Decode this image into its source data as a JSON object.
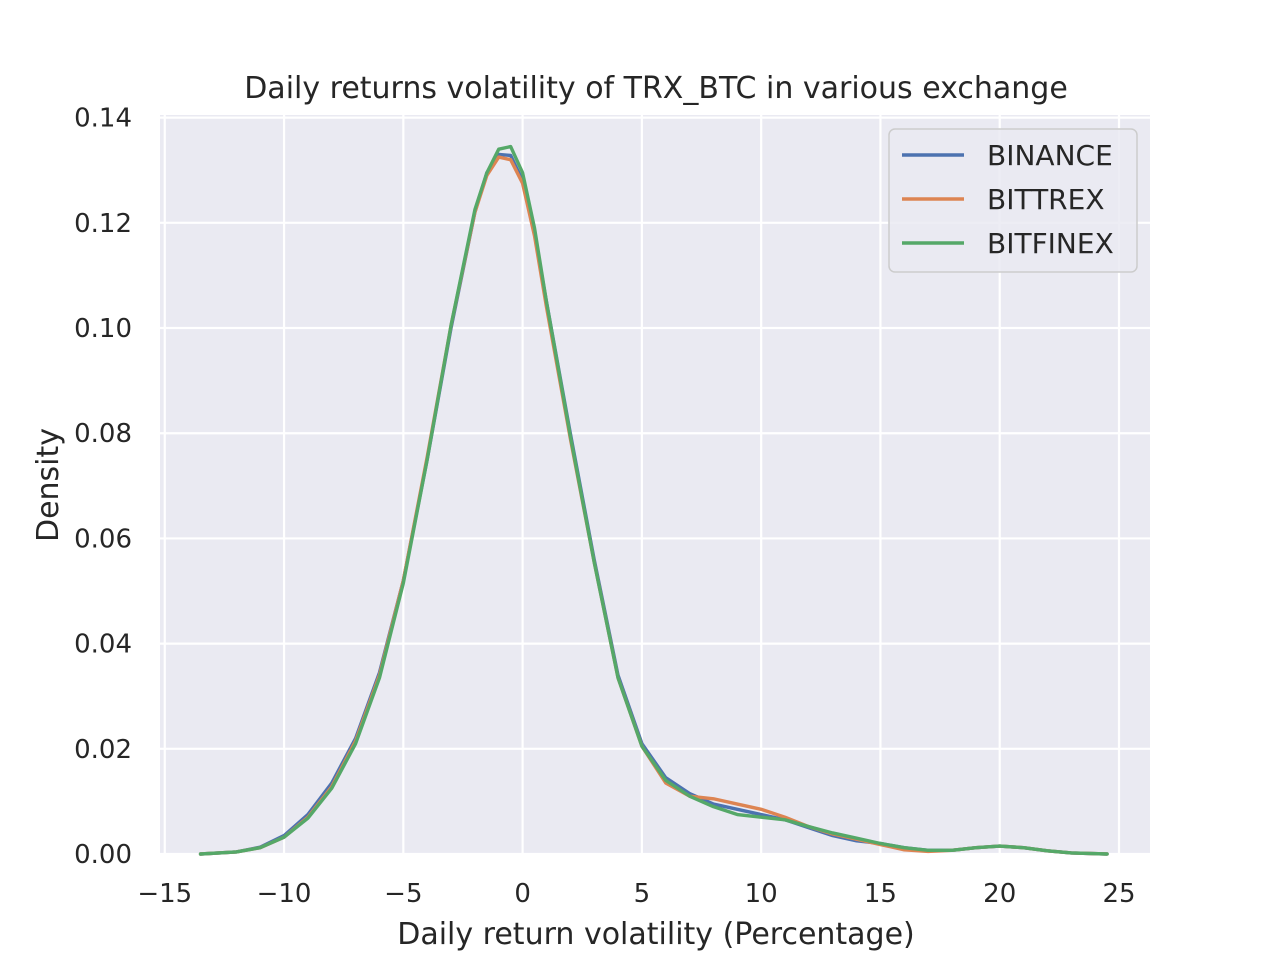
{
  "chart_data": {
    "type": "line",
    "title": "Daily returns volatility of TRX_BTC in various exchange",
    "xlabel": "Daily return volatility (Percentage)",
    "ylabel": "Density",
    "xlim": [
      -15.2,
      26.3
    ],
    "ylim": [
      0,
      0.1405
    ],
    "x_ticks": [
      -15,
      -10,
      -5,
      0,
      5,
      10,
      15,
      20,
      25
    ],
    "x_tick_labels": [
      "−15",
      "−10",
      "−5",
      "0",
      "5",
      "10",
      "15",
      "20",
      "25"
    ],
    "y_ticks": [
      0,
      0.02,
      0.04,
      0.06,
      0.08,
      0.1,
      0.12,
      0.14
    ],
    "y_tick_labels": [
      "0.00",
      "0.02",
      "0.04",
      "0.06",
      "0.08",
      "0.10",
      "0.12",
      "0.14"
    ],
    "grid": true,
    "legend_position": "top-right",
    "series": [
      {
        "name": "BINANCE",
        "color": "#4c72b0",
        "x": [
          -13.5,
          -12,
          -11,
          -10,
          -9,
          -8,
          -7,
          -6,
          -5,
          -4,
          -3,
          -2,
          -1.5,
          -1,
          -0.5,
          0,
          0.5,
          1,
          2,
          3,
          4,
          5,
          6,
          7,
          8,
          9,
          10,
          11,
          12,
          13,
          14,
          15,
          16,
          17,
          18,
          19,
          20,
          21,
          22,
          23,
          24.5
        ],
        "y": [
          0.0,
          0.0004,
          0.0013,
          0.0035,
          0.0075,
          0.0135,
          0.022,
          0.0345,
          0.052,
          0.075,
          0.1,
          0.122,
          0.1295,
          0.133,
          0.1328,
          0.128,
          0.118,
          0.105,
          0.08,
          0.056,
          0.034,
          0.021,
          0.0145,
          0.0115,
          0.0095,
          0.0085,
          0.0075,
          0.0065,
          0.005,
          0.0035,
          0.0025,
          0.002,
          0.0012,
          0.0007,
          0.0007,
          0.0012,
          0.0015,
          0.0012,
          0.0006,
          0.0002,
          0.0
        ]
      },
      {
        "name": "BITTREX",
        "color": "#dd8452",
        "x": [
          -13.5,
          -12,
          -11,
          -10,
          -9,
          -8,
          -7,
          -6,
          -5,
          -4,
          -3,
          -2,
          -1.5,
          -1,
          -0.5,
          0,
          0.5,
          1,
          2,
          3,
          4,
          5,
          6,
          7,
          8,
          9,
          10,
          11,
          12,
          13,
          14,
          15,
          16,
          17,
          18,
          19,
          20,
          21,
          22,
          23,
          24.5
        ],
        "y": [
          0.0,
          0.0004,
          0.0012,
          0.0032,
          0.007,
          0.0128,
          0.0215,
          0.034,
          0.052,
          0.0755,
          0.1005,
          0.122,
          0.129,
          0.1325,
          0.132,
          0.1275,
          0.1175,
          0.104,
          0.079,
          0.0555,
          0.0335,
          0.0205,
          0.0135,
          0.011,
          0.0105,
          0.0095,
          0.0085,
          0.007,
          0.0052,
          0.0038,
          0.0028,
          0.0018,
          0.0008,
          0.0005,
          0.0007,
          0.0012,
          0.0015,
          0.0012,
          0.0006,
          0.0002,
          0.0
        ]
      },
      {
        "name": "BITFINEX",
        "color": "#55a868",
        "x": [
          -13.5,
          -12,
          -11,
          -10,
          -9,
          -8,
          -7,
          -6,
          -5,
          -4,
          -3,
          -2,
          -1.5,
          -1,
          -0.5,
          0,
          0.5,
          1,
          2,
          3,
          4,
          5,
          6,
          7,
          8,
          9,
          10,
          11,
          12,
          13,
          14,
          15,
          16,
          17,
          18,
          19,
          20,
          21,
          22,
          23,
          24.5
        ],
        "y": [
          0.0,
          0.0004,
          0.0012,
          0.0032,
          0.0068,
          0.0125,
          0.021,
          0.0335,
          0.0515,
          0.075,
          0.1005,
          0.1225,
          0.1295,
          0.134,
          0.1345,
          0.1295,
          0.119,
          0.105,
          0.0795,
          0.0555,
          0.0335,
          0.0205,
          0.014,
          0.011,
          0.009,
          0.0075,
          0.007,
          0.0065,
          0.0052,
          0.004,
          0.003,
          0.002,
          0.0012,
          0.0007,
          0.0007,
          0.0012,
          0.0015,
          0.0012,
          0.0006,
          0.0002,
          0.0
        ]
      }
    ]
  }
}
